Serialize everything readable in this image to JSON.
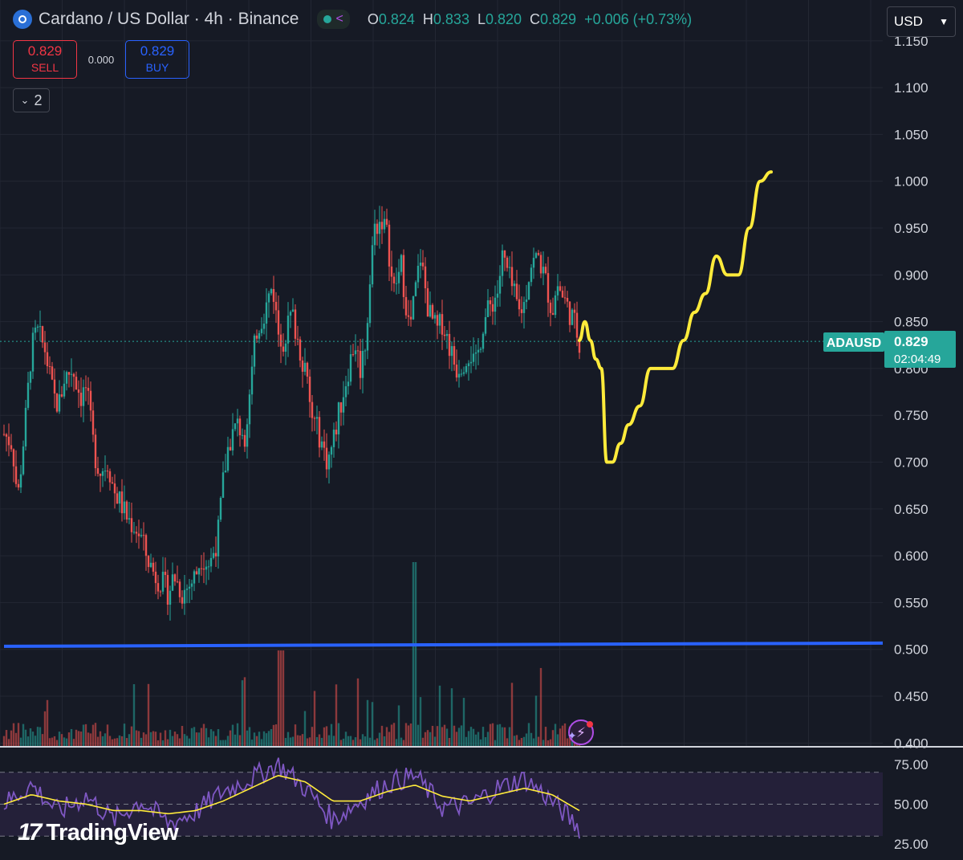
{
  "header": {
    "title": "Cardano / US Dollar · 4h · Binance",
    "ohlc": {
      "o_label": "O",
      "o": "0.824",
      "h_label": "H",
      "h": "0.833",
      "l_label": "L",
      "l": "0.820",
      "c_label": "C",
      "c": "0.829",
      "change": "+0.006 (+0.73%)"
    }
  },
  "currency_select": {
    "value": "USD"
  },
  "trade": {
    "sell_price": "0.829",
    "sell_label": "SELL",
    "spread": "0.000",
    "buy_price": "0.829",
    "buy_label": "BUY"
  },
  "indicators_toggle": {
    "count": "2"
  },
  "price_tag": {
    "symbol": "ADAUSD",
    "price": "0.829",
    "countdown": "02:04:49"
  },
  "brand": "TradingView",
  "colors": {
    "background": "#161a25",
    "up": "#26a69a",
    "down": "#ef5350",
    "drawing": "#ffeb3b",
    "support_line": "#2962ff",
    "rsi": "#7e57c2",
    "rsi_ma": "#ffeb3b"
  },
  "chart_data": [
    {
      "type": "line",
      "title": "",
      "price_axis": {
        "ticks": [
          "1.150",
          "1.100",
          "1.050",
          "1.000",
          "0.950",
          "0.900",
          "0.850",
          "0.800",
          "0.750",
          "0.700",
          "0.650",
          "0.600",
          "0.550",
          "0.500",
          "0.450",
          "0.400"
        ],
        "ylim": [
          0.396,
          1.155
        ]
      },
      "series": [
        {
          "x": [
            0,
            3,
            5,
            8,
            10,
            12,
            15,
            18,
            20,
            22,
            25,
            28,
            30,
            33,
            35,
            38,
            40,
            42,
            45,
            48,
            50,
            52,
            55,
            58,
            60,
            62,
            65,
            68,
            70,
            72,
            75,
            78,
            80,
            82,
            85,
            88,
            90,
            92,
            95,
            98,
            100,
            102,
            105,
            108,
            110,
            112,
            115,
            118,
            120,
            122,
            125,
            128,
            130,
            132,
            135,
            138,
            140,
            142,
            145,
            148,
            150,
            152,
            155,
            158,
            160,
            162,
            165,
            168,
            170,
            172,
            175,
            178,
            180,
            182,
            185,
            188,
            190,
            192,
            195,
            198,
            200,
            202,
            205,
            208,
            210
          ],
          "close": [
            0.73,
            0.72,
            0.66,
            0.75,
            0.82,
            0.84,
            0.82,
            0.77,
            0.76,
            0.79,
            0.8,
            0.77,
            0.78,
            0.71,
            0.69,
            0.7,
            0.67,
            0.66,
            0.64,
            0.63,
            0.62,
            0.6,
            0.58,
            0.57,
            0.56,
            0.58,
            0.56,
            0.57,
            0.58,
            0.6,
            0.59,
            0.62,
            0.68,
            0.72,
            0.74,
            0.73,
            0.78,
            0.84,
            0.86,
            0.89,
            0.84,
            0.83,
            0.86,
            0.82,
            0.8,
            0.75,
            0.73,
            0.7,
            0.72,
            0.75,
            0.79,
            0.83,
            0.8,
            0.83,
            0.95,
            0.96,
            0.94,
            0.88,
            0.91,
            0.84,
            0.88,
            0.92,
            0.86,
            0.84,
            0.85,
            0.83,
            0.8,
            0.81,
            0.82,
            0.8,
            0.85,
            0.87,
            0.88,
            0.92,
            0.89,
            0.86,
            0.87,
            0.91,
            0.92,
            0.89,
            0.86,
            0.89,
            0.87,
            0.85,
            0.829
          ],
          "unit": "USD"
        },
        {
          "x": [
            210,
            212,
            214,
            216,
            218,
            220,
            222,
            225,
            228,
            232,
            236,
            240,
            244,
            248,
            252,
            256,
            260,
            264,
            268,
            272,
            276,
            280
          ],
          "y": [
            0.83,
            0.85,
            0.83,
            0.81,
            0.8,
            0.7,
            0.7,
            0.72,
            0.74,
            0.76,
            0.8,
            0.8,
            0.8,
            0.83,
            0.86,
            0.88,
            0.92,
            0.9,
            0.9,
            0.95,
            1.0,
            1.01
          ],
          "unit": "USD"
        }
      ],
      "horizontal_lines": [
        {
          "y": 0.505
        },
        {
          "y": 0.829
        }
      ],
      "grid": true
    },
    {
      "type": "line",
      "title": "",
      "rsi_axis": {
        "ticks": [
          "75.00",
          "50.00",
          "25.00"
        ],
        "ylim": [
          15,
          85
        ]
      },
      "bands": [
        30,
        50,
        70
      ],
      "series": [
        {
          "x": [
            0,
            10,
            20,
            30,
            40,
            50,
            60,
            70,
            80,
            90,
            100,
            110,
            120,
            130,
            140,
            150,
            160,
            170,
            180,
            190,
            200,
            210
          ],
          "values": [
            50,
            62,
            45,
            55,
            40,
            52,
            38,
            45,
            58,
            66,
            75,
            60,
            40,
            52,
            63,
            68,
            48,
            50,
            60,
            66,
            52,
            35
          ]
        },
        {
          "x": [
            0,
            10,
            20,
            30,
            40,
            50,
            60,
            70,
            80,
            90,
            100,
            110,
            120,
            130,
            140,
            150,
            160,
            170,
            180,
            190,
            200,
            210
          ],
          "values": [
            50,
            56,
            52,
            50,
            46,
            46,
            44,
            46,
            52,
            60,
            68,
            64,
            52,
            52,
            58,
            62,
            55,
            52,
            56,
            60,
            56,
            46
          ]
        }
      ]
    }
  ]
}
